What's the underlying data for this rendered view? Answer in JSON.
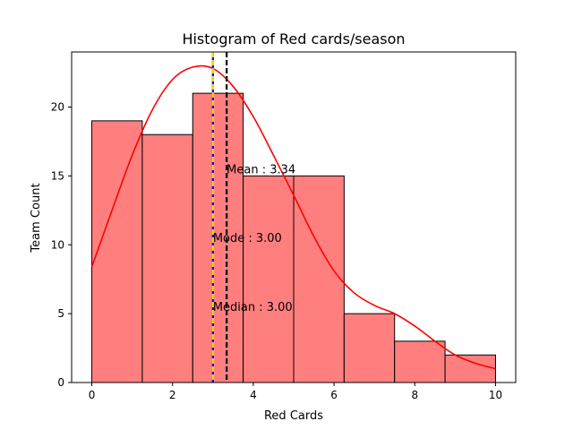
{
  "chart_data": {
    "type": "bar",
    "title": "Histogram of Red cards/season",
    "xlabel": "Red Cards",
    "ylabel": "Team Count",
    "xlim": [
      -0.5,
      10.5
    ],
    "ylim": [
      0,
      24
    ],
    "xticks": [
      0,
      2,
      4,
      6,
      8,
      10
    ],
    "yticks": [
      0,
      5,
      10,
      15,
      20
    ],
    "bar_color": "#ff7f7f",
    "bins": [
      {
        "x0": 0.0,
        "x1": 1.25,
        "count": 19
      },
      {
        "x0": 1.25,
        "x1": 2.5,
        "count": 18
      },
      {
        "x0": 2.5,
        "x1": 3.75,
        "count": 21
      },
      {
        "x0": 3.75,
        "x1": 5.0,
        "count": 15
      },
      {
        "x0": 5.0,
        "x1": 6.25,
        "count": 15
      },
      {
        "x0": 6.25,
        "x1": 7.5,
        "count": 5
      },
      {
        "x0": 7.5,
        "x1": 8.75,
        "count": 3
      },
      {
        "x0": 8.75,
        "x1": 10.0,
        "count": 2
      }
    ],
    "kde": {
      "color": "#ff0000",
      "x": [
        0,
        0.5,
        1,
        1.5,
        2,
        2.5,
        3,
        3.5,
        4,
        4.5,
        5,
        5.5,
        6,
        6.5,
        7,
        7.5,
        8,
        8.5,
        9,
        9.5,
        10
      ],
      "y": [
        8.4,
        12.5,
        16.5,
        19.8,
        22.0,
        22.9,
        22.8,
        21.5,
        19.3,
        16.5,
        13.6,
        10.6,
        8.1,
        6.5,
        5.6,
        5.0,
        4.1,
        3.0,
        2.0,
        1.4,
        1.0
      ]
    },
    "reference_lines": [
      {
        "name": "median",
        "x": 3.0,
        "color": "#0000ff",
        "label": "Median : 3.00"
      },
      {
        "name": "mode",
        "x": 3.0,
        "color": "#ffd700",
        "label": "Mode : 3.00"
      },
      {
        "name": "mean",
        "x": 3.34,
        "color": "#000000",
        "label": "Mean : 3.34"
      }
    ],
    "annotations": [
      {
        "text": "Mean : 3.34",
        "x": 3.34,
        "y": 15.2
      },
      {
        "text": "Mode : 3.00",
        "x": 3.0,
        "y": 10.2
      },
      {
        "text": "Median : 3.00",
        "x": 3.0,
        "y": 5.2
      }
    ]
  }
}
